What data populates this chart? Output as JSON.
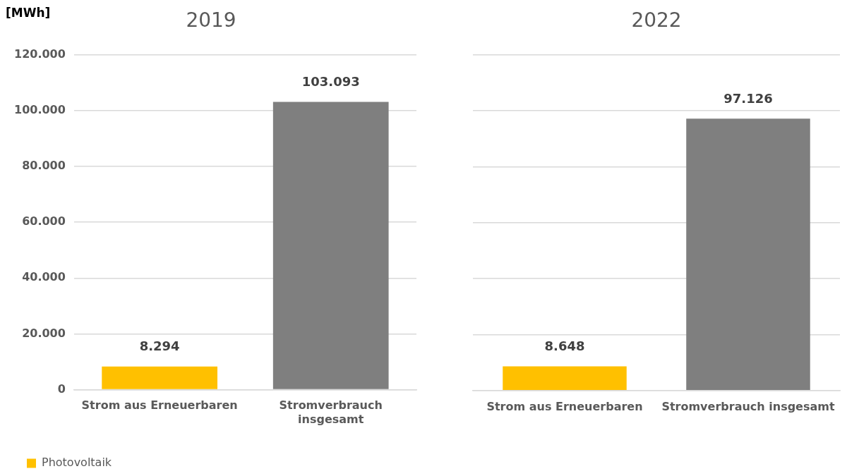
{
  "chart_data": [
    {
      "type": "bar",
      "title": "2019",
      "ylabel": "[MWh]",
      "categories": [
        "Strom aus Erneuerbaren",
        "Stromverbrauch insgesamt"
      ],
      "series": [
        {
          "name": "Photovoltaik",
          "color": "#ffc000",
          "values": [
            8294,
            null
          ],
          "value_labels": [
            "8.294",
            null
          ]
        },
        {
          "color": "#7f7f7f",
          "values": [
            null,
            103093
          ],
          "value_labels": [
            null,
            "103.093"
          ]
        }
      ],
      "ylim": [
        0,
        120000
      ],
      "yticks": [
        {
          "value": 0,
          "label": "0"
        },
        {
          "value": 20000,
          "label": "20.000"
        },
        {
          "value": 40000,
          "label": "40.000"
        },
        {
          "value": 60000,
          "label": "60.000"
        },
        {
          "value": 80000,
          "label": "80.000"
        },
        {
          "value": 100000,
          "label": "100.000"
        },
        {
          "value": 120000,
          "label": "120.000"
        }
      ],
      "grid": "y",
      "legend": "bottom left"
    },
    {
      "type": "bar",
      "title": "2022",
      "categories": [
        "Strom aus Erneuerbaren",
        "Stromverbrauch insgesamt"
      ],
      "series": [
        {
          "color": "#ffc000",
          "values": [
            8648,
            null
          ],
          "value_labels": [
            "8.648",
            null
          ]
        },
        {
          "color": "#7f7f7f",
          "values": [
            null,
            97126
          ],
          "value_labels": [
            null,
            "97.126"
          ]
        }
      ],
      "ylim": [
        0,
        120000
      ],
      "yticks": [
        0,
        20000,
        40000,
        60000,
        80000,
        100000,
        120000
      ],
      "grid": "y",
      "tick_labels": "x"
    }
  ]
}
